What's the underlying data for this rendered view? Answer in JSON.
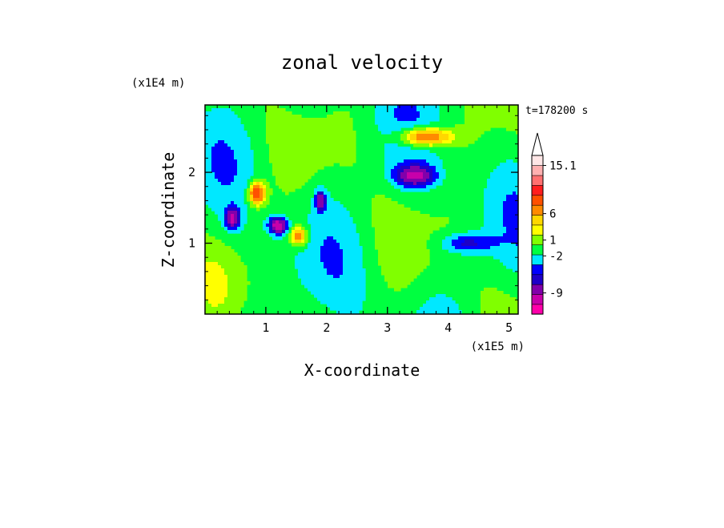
{
  "chart_data": {
    "type": "heatmap",
    "title": "zonal velocity",
    "xlabel": "X-coordinate",
    "ylabel": "Z-coordinate",
    "x_unit": "(x1E5 m)",
    "y_unit": "(x1E4 m)",
    "time_label": "t=178200 s",
    "xlim": [
      0,
      5.15
    ],
    "ylim": [
      0,
      2.95
    ],
    "x_ticks": [
      1,
      2,
      3,
      4,
      5
    ],
    "y_ticks": [
      1,
      2
    ],
    "colorbar": {
      "colors": [
        "#ff00aa",
        "#c800aa",
        "#8200aa",
        "#1e00c8",
        "#0000ff",
        "#00e8ff",
        "#00ff40",
        "#80ff00",
        "#ffff00",
        "#ffd700",
        "#ff8a00",
        "#ff5000",
        "#ff1e1e",
        "#ff7070",
        "#ffb0b0",
        "#ffe6e6"
      ],
      "labels": [
        {
          "text": "15.1",
          "value": 15.1
        },
        {
          "text": "6",
          "value": 6
        },
        {
          "text": "1",
          "value": 1
        },
        {
          "text": "-2",
          "value": -2
        },
        {
          "text": "-9",
          "value": -9
        }
      ],
      "open_top": true
    },
    "features": [
      {
        "x": 1.2,
        "z": 1.25,
        "sign": -1,
        "amp": 6,
        "sx": 0.1,
        "sz": 0.08
      },
      {
        "x": 0.45,
        "z": 1.35,
        "sign": -1,
        "amp": 5,
        "sx": 0.08,
        "sz": 0.1
      },
      {
        "x": 1.9,
        "z": 1.6,
        "sign": -1,
        "amp": 4,
        "sx": 0.06,
        "sz": 0.1
      },
      {
        "x": 3.45,
        "z": 1.95,
        "sign": -1,
        "amp": 5,
        "sx": 0.22,
        "sz": 0.1
      },
      {
        "x": 3.6,
        "z": 2.5,
        "sign": 1,
        "amp": 4,
        "sx": 0.3,
        "sz": 0.1
      },
      {
        "x": 0.85,
        "z": 1.7,
        "sign": 1,
        "amp": 4,
        "sx": 0.1,
        "sz": 0.12
      },
      {
        "x": 1.55,
        "z": 1.1,
        "sign": 1,
        "amp": 3,
        "sx": 0.1,
        "sz": 0.1
      },
      {
        "x": 4.3,
        "z": 1.0,
        "sign": -1,
        "amp": 2.5,
        "sx": 0.3,
        "sz": 0.1
      }
    ]
  }
}
